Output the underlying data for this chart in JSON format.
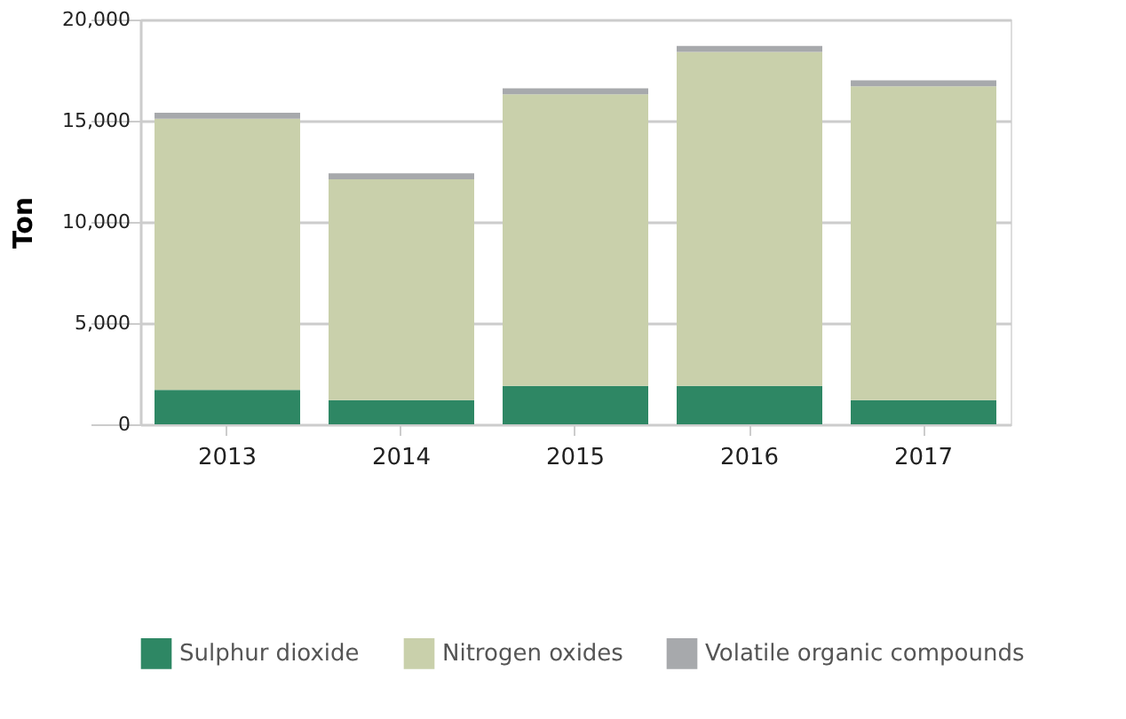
{
  "chart_data": {
    "type": "bar",
    "stacked": true,
    "ylabel": "Ton",
    "categories": [
      "2013",
      "2014",
      "2015",
      "2016",
      "2017"
    ],
    "series": [
      {
        "name": "Sulphur dioxide",
        "color": "#2e8764",
        "values": [
          1700,
          1200,
          1900,
          1900,
          1200
        ]
      },
      {
        "name": "Nitrogen oxides",
        "color": "#c9d0ab",
        "values": [
          13400,
          10900,
          14400,
          16500,
          15500
        ]
      },
      {
        "name": "Volatile organic compounds",
        "color": "#a7a9ac",
        "values": [
          300,
          300,
          300,
          300,
          300
        ]
      }
    ],
    "ylim": [
      0,
      20000
    ],
    "yticks": [
      0,
      {
        "value": 5000,
        "label": "5,000"
      },
      {
        "value": 10000,
        "label": "10,000"
      },
      {
        "value": 15000,
        "label": "15,000"
      },
      {
        "value": 20000,
        "label": "20,000"
      }
    ],
    "grid": "y",
    "legend": "bottom"
  }
}
